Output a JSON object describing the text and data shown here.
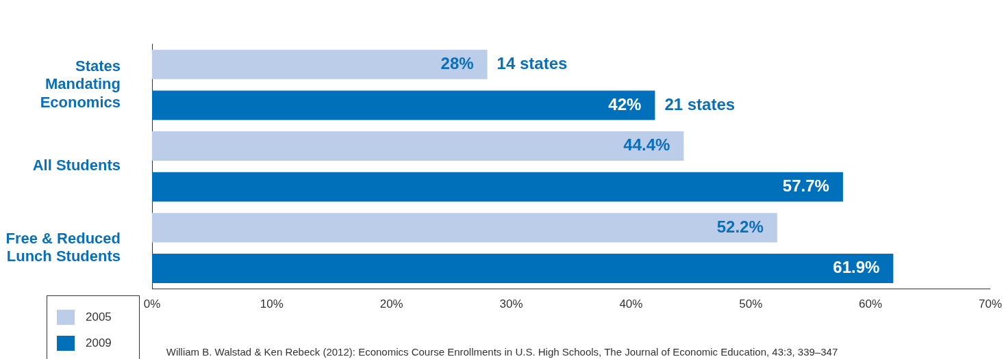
{
  "chart_data": {
    "type": "bar",
    "orientation": "horizontal",
    "categories": [
      "States Mandating Economics",
      "All Students",
      "Free & Reduced Lunch Students"
    ],
    "series": [
      {
        "name": "2005",
        "color": "#bccde9",
        "values": [
          28,
          44.4,
          52.2
        ],
        "value_labels": [
          "28%",
          "44.4%",
          "52.2%"
        ]
      },
      {
        "name": "2009",
        "color": "#0070bb",
        "values": [
          42,
          57.7,
          61.9
        ],
        "value_labels": [
          "42%",
          "57.7%",
          "61.9%"
        ]
      }
    ],
    "xlim": [
      0,
      70
    ],
    "xticks": [
      {
        "value": 0,
        "label": "0%"
      },
      {
        "value": 10,
        "label": "10%"
      },
      {
        "value": 20,
        "label": "20%"
      },
      {
        "value": 30,
        "label": "30%"
      },
      {
        "value": 40,
        "label": "40%"
      },
      {
        "value": 50,
        "label": "50%"
      },
      {
        "value": 60,
        "label": "60%"
      },
      {
        "value": 70,
        "label": "70%"
      }
    ],
    "annotations": [
      "14 states",
      "21 states",
      "William B. Walstad & Ken Rebeck (2012): Economics Course Enrollments in U.S. High Schools, The Journal of Economic Education, 43:3, 339–347"
    ],
    "legend": "bottom left",
    "grid": false
  }
}
